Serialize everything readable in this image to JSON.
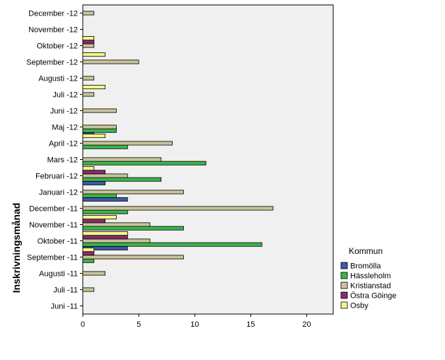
{
  "chart_data": {
    "type": "bar",
    "orientation": "horizontal",
    "ylabel": "Inskrivningsmånad",
    "xlabel": "",
    "xlim": [
      0,
      22
    ],
    "xticks": [
      0,
      5,
      10,
      15,
      20
    ],
    "legend_title": "Kommun",
    "legend_position": "right",
    "categories": [
      "December -12",
      "November -12",
      "Oktober -12",
      "September -12",
      "Augusti -12",
      "Juli -12",
      "Juni -12",
      "Maj -12",
      "April -12",
      "Mars -12",
      "Februari -12",
      "Januari -12",
      "December -11",
      "November -11",
      "Oktober -11",
      "September -11",
      "Augusti -11",
      "Juli -11",
      "Juni -11"
    ],
    "series": [
      {
        "name": "Bromölla",
        "color": "#3c5aa6",
        "values": [
          0,
          0,
          0,
          0,
          0,
          0,
          0,
          1,
          0,
          0,
          2,
          4,
          0,
          0,
          4,
          0,
          0,
          0,
          0
        ]
      },
      {
        "name": "Hässleholm",
        "color": "#3cb44b",
        "values": [
          0,
          0,
          0,
          0,
          0,
          0,
          0,
          3,
          4,
          11,
          7,
          3,
          4,
          9,
          16,
          1,
          0,
          0,
          0
        ]
      },
      {
        "name": "Kristianstad",
        "color": "#c8c39b",
        "values": [
          1,
          0,
          1,
          5,
          1,
          1,
          3,
          3,
          8,
          7,
          4,
          9,
          17,
          6,
          6,
          9,
          2,
          1,
          0
        ]
      },
      {
        "name": "Östra Göinge",
        "color": "#8c2a6e",
        "values": [
          0,
          0,
          1,
          0,
          0,
          0,
          0,
          0,
          0,
          0,
          2,
          0,
          0,
          2,
          4,
          1,
          0,
          0,
          0
        ]
      },
      {
        "name": "Osby",
        "color": "#f5f58c",
        "values": [
          0,
          0,
          1,
          2,
          0,
          2,
          0,
          0,
          2,
          0,
          1,
          0,
          0,
          3,
          4,
          1,
          0,
          0,
          0
        ]
      }
    ]
  }
}
